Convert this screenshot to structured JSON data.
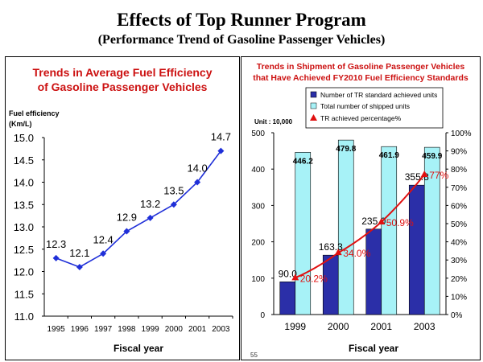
{
  "header": {
    "title": "Effects of Top Runner Program",
    "subtitle": "(Performance Trend of Gasoline Passenger Vehicles)"
  },
  "page_number": "55",
  "colors": {
    "title_red": "#cc1111",
    "line_blue": "#1f2fd8",
    "bar_dark": "#2b2fa8",
    "bar_light": "#a7f2f7",
    "pct_red": "#e01010"
  },
  "legend_icons": [
    "blue-square-icon",
    "cyan-square-icon",
    "red-triangle-icon"
  ],
  "chart_data": [
    {
      "type": "line",
      "title": "Trends in Average Fuel Efficiency of Gasoline Passenger Vehicles",
      "title_lines": [
        "Trends in Average Fuel Efficiency",
        "of Gasoline Passenger Vehicles"
      ],
      "ylabel": "Fuel efficiency",
      "yunit": "(Km/L)",
      "xlabel": "Fiscal year",
      "categories": [
        "1995",
        "1996",
        "1997",
        "1998",
        "1999",
        "2000",
        "2001",
        "2003"
      ],
      "values": [
        12.3,
        12.1,
        12.4,
        12.9,
        13.2,
        13.5,
        14.0,
        14.7
      ],
      "value_labels": [
        "12.3",
        "12.1",
        "12.4",
        "12.9",
        "13.2",
        "13.5",
        "14.0",
        "14.7"
      ],
      "ylim": [
        11.0,
        15.0
      ],
      "yticks": [
        "11.0",
        "11.5",
        "12.0",
        "12.5",
        "13.0",
        "13.5",
        "14.0",
        "14.5",
        "15.0"
      ],
      "grid": false
    },
    {
      "type": "bar",
      "title": "Trends in Shipment of Gasoline Passenger Vehicles that Have Achieved FY2010 Fuel Efficiency Standards",
      "title_lines": [
        "Trends in Shipment of Gasoline Passenger Vehicles",
        "that Have Achieved FY2010 Fuel Efficiency Standards"
      ],
      "unit": "Unit : 10,000",
      "xlabel": "Fiscal year",
      "categories": [
        "1999",
        "2000",
        "2001",
        "2003"
      ],
      "series": [
        {
          "name": "Number of TR standard achieved units",
          "values": [
            90.0,
            163.3,
            235.0,
            355.8
          ],
          "labels": [
            "90.0",
            "163.3",
            "235.0",
            "355.8"
          ]
        },
        {
          "name": "Total number of shipped units",
          "values": [
            446.2,
            479.8,
            461.9,
            459.9
          ],
          "labels": [
            "446.2",
            "479.8",
            "461.9",
            "459.9"
          ]
        },
        {
          "name": "TR achieved percentage%",
          "type": "line",
          "axis": "right",
          "values": [
            20.2,
            34.0,
            50.9,
            77.0
          ],
          "labels": [
            "20.2%",
            "34.0%",
            "50.9%",
            "77%"
          ]
        }
      ],
      "ylim": [
        0,
        500
      ],
      "yticks": [
        "0",
        "100",
        "200",
        "300",
        "400",
        "500"
      ],
      "y2lim": [
        0,
        100
      ],
      "y2ticks": [
        "0%",
        "10%",
        "20%",
        "30%",
        "40%",
        "50%",
        "60%",
        "70%",
        "80%",
        "90%",
        "100%"
      ],
      "legend_position": "top"
    }
  ]
}
